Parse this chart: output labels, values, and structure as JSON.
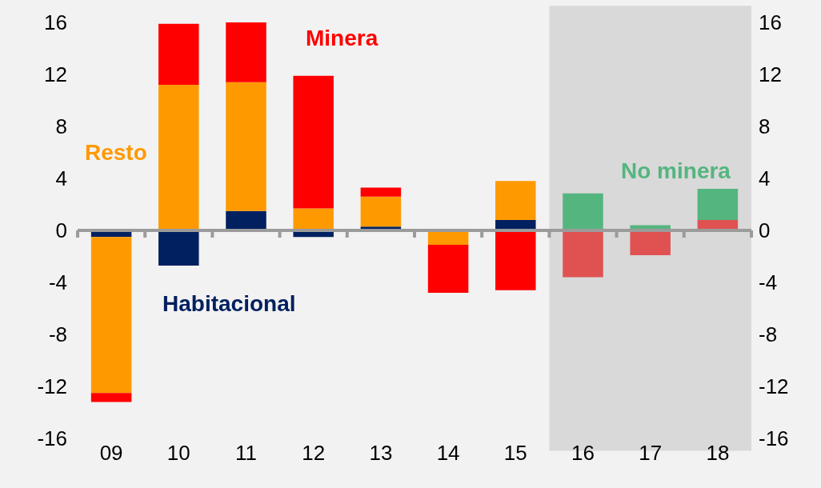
{
  "chart_data": {
    "type": "bar",
    "stacked": true,
    "categories": [
      "09",
      "10",
      "11",
      "12",
      "13",
      "14",
      "15",
      "16",
      "17",
      "18"
    ],
    "series": [
      {
        "name": "Habitacional",
        "color": "#002060",
        "values": [
          -0.5,
          -2.7,
          1.5,
          -0.5,
          0.3,
          null,
          0.8,
          null,
          null,
          null
        ]
      },
      {
        "name": "Resto",
        "color": "#ff9900",
        "values": [
          -12.0,
          11.2,
          9.9,
          1.7,
          2.3,
          -1.1,
          3.0,
          null,
          null,
          null
        ]
      },
      {
        "name": "Minera",
        "color": "#ff0000",
        "values": [
          -0.7,
          4.7,
          4.7,
          10.2,
          0.7,
          -3.7,
          -4.6,
          null,
          null,
          null
        ]
      },
      {
        "color": "#e05252",
        "values": [
          null,
          null,
          null,
          null,
          null,
          null,
          null,
          -3.6,
          -1.9,
          0.8
        ]
      },
      {
        "name": "No minera",
        "color": "#55b57f",
        "values": [
          null,
          null,
          null,
          null,
          null,
          null,
          null,
          2.85,
          0.4,
          2.4
        ]
      }
    ],
    "ylim": [
      -16,
      16
    ],
    "yticks": [
      -16,
      -12,
      -8,
      -4,
      0,
      4,
      8,
      12,
      16
    ],
    "y2lim": [
      -16,
      16
    ],
    "y2ticks": [
      -16,
      -12,
      -8,
      -4,
      0,
      4,
      8,
      12,
      16
    ],
    "bands": [
      {
        "axis": "x",
        "from": "16",
        "to": "18",
        "color": "#d9d9d9"
      }
    ],
    "ref_lines": [
      {
        "axis": "y",
        "value": 0,
        "color": "#9b9b9b"
      }
    ],
    "grid": false,
    "legend": false
  }
}
